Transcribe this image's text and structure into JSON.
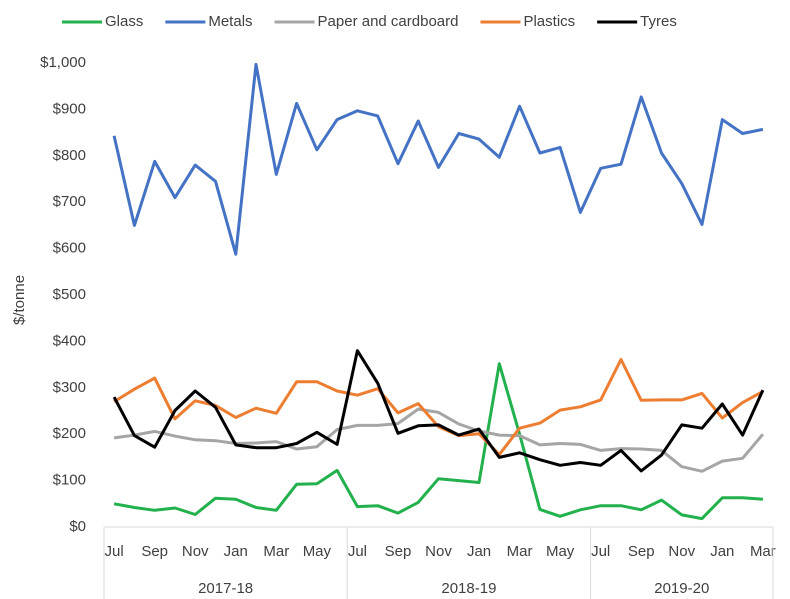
{
  "chart_data": {
    "type": "line",
    "y_label": "$/tonne",
    "categories": [
      "Jul",
      null,
      "Sep",
      null,
      "Nov",
      null,
      "Jan",
      null,
      "Mar",
      null,
      "May",
      null,
      "Jul",
      null,
      "Sep",
      null,
      "Nov",
      null,
      "Jan",
      null,
      "Mar",
      null,
      "May",
      null,
      "Jul",
      null,
      "Sep",
      null,
      "Nov",
      null,
      "Jan",
      null,
      "Mar"
    ],
    "groups": [
      "2017-18",
      "2018-19",
      "2019-20"
    ],
    "ylim": [
      0,
      1000
    ],
    "yticks": [
      {
        "value": 0,
        "label": "$0"
      },
      {
        "value": 100,
        "label": "$100"
      },
      {
        "value": 200,
        "label": "$200"
      },
      {
        "value": 300,
        "label": "$300"
      },
      {
        "value": 400,
        "label": "$400"
      },
      {
        "value": 500,
        "label": "$500"
      },
      {
        "value": 600,
        "label": "$600"
      },
      {
        "value": 700,
        "label": "$700"
      },
      {
        "value": 800,
        "label": "$800"
      },
      {
        "value": 900,
        "label": "$900"
      },
      {
        "value": 1000,
        "label": "$1,000"
      }
    ],
    "legend": "top",
    "series": [
      {
        "name": "Glass",
        "color": "#22b14c",
        "values": [
          50,
          42,
          36,
          41,
          27,
          62,
          60,
          42,
          36,
          92,
          93,
          122,
          44,
          46,
          30,
          53,
          104,
          100,
          96,
          352,
          200,
          38,
          23,
          37,
          46,
          46,
          37,
          58,
          26,
          18,
          63,
          63,
          60
        ]
      },
      {
        "name": "Metals",
        "color": "#4472c4",
        "values": [
          843,
          650,
          788,
          710,
          780,
          745,
          588,
          997,
          760,
          913,
          813,
          878,
          897,
          886,
          783,
          875,
          775,
          848,
          836,
          797,
          907,
          806,
          818,
          678,
          773,
          782,
          927,
          806,
          740,
          652,
          878,
          848,
          857
        ]
      },
      {
        "name": "Paper and cardboard",
        "color": "#a5a5a5",
        "values": [
          192,
          198,
          206,
          196,
          188,
          186,
          180,
          181,
          184,
          168,
          173,
          210,
          219,
          219,
          223,
          254,
          247,
          222,
          207,
          198,
          197,
          177,
          180,
          178,
          165,
          169,
          168,
          165,
          130,
          120,
          142,
          148,
          200
        ]
      },
      {
        "name": "Plastics",
        "color": "#ed7d31",
        "values": [
          270,
          297,
          321,
          233,
          272,
          262,
          236,
          256,
          245,
          313,
          313,
          293,
          284,
          298,
          246,
          266,
          216,
          197,
          201,
          156,
          213,
          224,
          252,
          259,
          274,
          361,
          273,
          274,
          274,
          288,
          235,
          268,
          292
        ]
      },
      {
        "name": "Tyres",
        "color": "#000000",
        "values": [
          280,
          197,
          172,
          251,
          293,
          258,
          177,
          171,
          171,
          180,
          204,
          178,
          380,
          310,
          202,
          218,
          220,
          198,
          211,
          150,
          160,
          145,
          133,
          139,
          133,
          165,
          121,
          155,
          220,
          213,
          265,
          198,
          295
        ]
      }
    ]
  }
}
